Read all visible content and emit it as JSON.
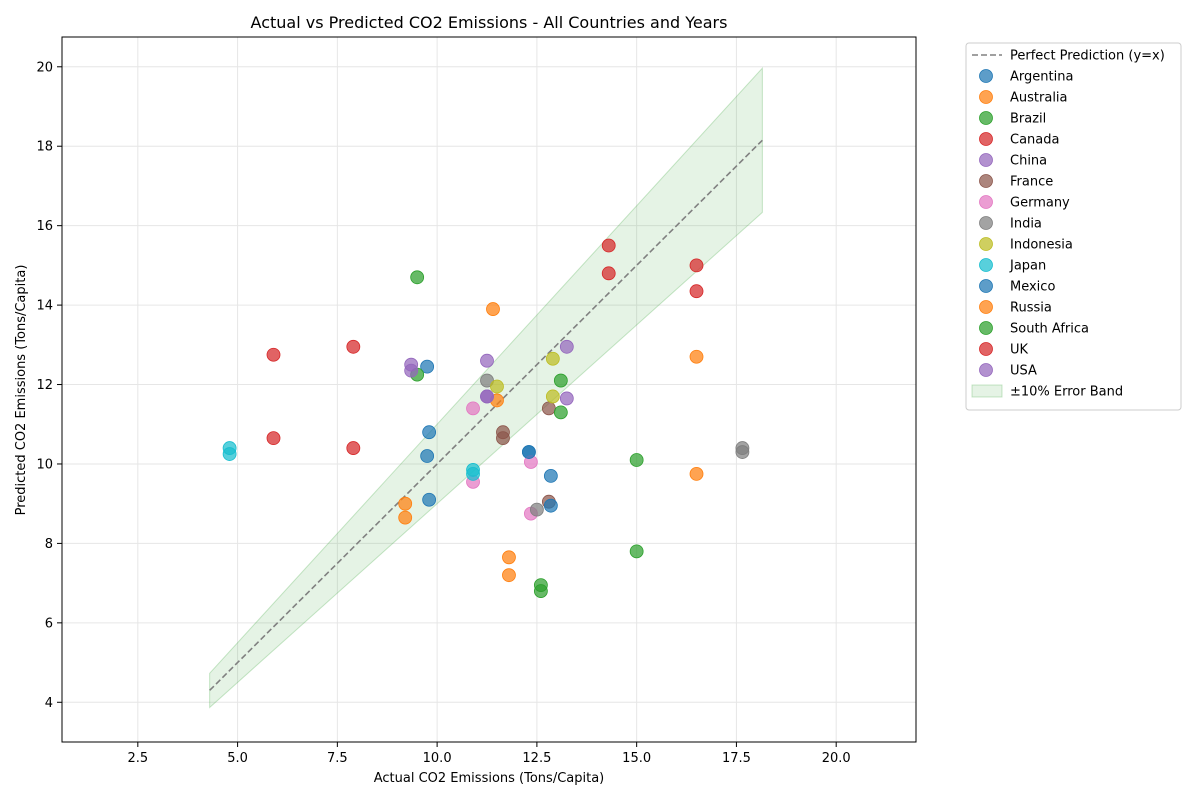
{
  "chart_data": {
    "type": "scatter",
    "title": "Actual vs Predicted CO2 Emissions - All Countries and Years",
    "xlabel": "Actual CO2 Emissions (Tons/Capita)",
    "ylabel": "Predicted CO2 Emissions (Tons/Capita)",
    "xlim": [
      0.6,
      22.0
    ],
    "ylim": [
      3.0,
      20.75
    ],
    "xticks": [
      "2.5",
      "5.0",
      "7.5",
      "10.0",
      "12.5",
      "15.0",
      "17.5",
      "20.0"
    ],
    "yticks": [
      "4",
      "6",
      "8",
      "10",
      "12",
      "14",
      "16",
      "18",
      "20"
    ],
    "grid": true,
    "legend_position": "outside-right",
    "reference_line": {
      "name": "Perfect Prediction (y=x)",
      "x": [
        4.3,
        18.15
      ],
      "y": [
        4.3,
        18.15
      ],
      "color": "#808080"
    },
    "error_band": {
      "name": "±10% Error Band",
      "x": [
        4.3,
        18.15
      ],
      "lower_factor": 0.9,
      "upper_factor": 1.1,
      "color": "#2ca02c"
    },
    "series": [
      {
        "name": "Argentina",
        "color": "#1f77b4",
        "points": [
          [
            9.75,
            12.45
          ],
          [
            9.8,
            10.8
          ],
          [
            12.85,
            9.7
          ],
          [
            12.3,
            10.3
          ]
        ]
      },
      {
        "name": "Australia",
        "color": "#ff7f0e",
        "points": [
          [
            11.4,
            13.9
          ],
          [
            16.5,
            12.7
          ],
          [
            9.2,
            9.0
          ],
          [
            11.5,
            11.6
          ]
        ]
      },
      {
        "name": "Brazil",
        "color": "#2ca02c",
        "points": [
          [
            9.5,
            14.7
          ],
          [
            9.5,
            12.25
          ],
          [
            13.1,
            12.1
          ],
          [
            15.0,
            10.1
          ],
          [
            12.6,
            6.95
          ]
        ]
      },
      {
        "name": "Canada",
        "color": "#d62728",
        "points": [
          [
            14.3,
            15.5
          ],
          [
            14.3,
            14.8
          ],
          [
            16.5,
            15.0
          ],
          [
            5.9,
            12.75
          ],
          [
            7.9,
            12.95
          ]
        ]
      },
      {
        "name": "China",
        "color": "#9467bd",
        "points": [
          [
            9.35,
            12.5
          ],
          [
            11.25,
            12.6
          ],
          [
            13.25,
            12.95
          ],
          [
            11.25,
            11.7
          ]
        ]
      },
      {
        "name": "France",
        "color": "#8c564b",
        "points": [
          [
            11.65,
            10.8
          ],
          [
            11.65,
            10.65
          ],
          [
            12.8,
            11.4
          ],
          [
            12.8,
            9.05
          ]
        ]
      },
      {
        "name": "Germany",
        "color": "#e377c2",
        "points": [
          [
            10.9,
            11.4
          ],
          [
            10.9,
            9.55
          ],
          [
            12.35,
            10.05
          ],
          [
            12.35,
            8.75
          ]
        ]
      },
      {
        "name": "India",
        "color": "#7f7f7f",
        "points": [
          [
            17.65,
            10.4
          ],
          [
            17.65,
            10.3
          ],
          [
            12.5,
            8.85
          ],
          [
            11.25,
            12.1
          ]
        ]
      },
      {
        "name": "Indonesia",
        "color": "#bcbd22",
        "points": [
          [
            12.9,
            12.65
          ],
          [
            12.9,
            11.7
          ],
          [
            11.5,
            11.95
          ]
        ]
      },
      {
        "name": "Japan",
        "color": "#17becf",
        "points": [
          [
            4.8,
            10.4
          ],
          [
            4.8,
            10.25
          ],
          [
            10.9,
            9.85
          ],
          [
            10.9,
            9.75
          ]
        ]
      },
      {
        "name": "Mexico",
        "color": "#1f77b4",
        "points": [
          [
            9.75,
            10.2
          ],
          [
            9.8,
            9.1
          ],
          [
            12.85,
            8.95
          ],
          [
            12.3,
            10.3
          ]
        ]
      },
      {
        "name": "Russia",
        "color": "#ff7f0e",
        "points": [
          [
            16.5,
            9.75
          ],
          [
            9.2,
            8.65
          ],
          [
            11.8,
            7.65
          ],
          [
            11.8,
            7.2
          ]
        ]
      },
      {
        "name": "South Africa",
        "color": "#2ca02c",
        "points": [
          [
            15.0,
            7.8
          ],
          [
            13.1,
            11.3
          ],
          [
            12.6,
            6.8
          ]
        ]
      },
      {
        "name": "UK",
        "color": "#d62728",
        "points": [
          [
            16.5,
            14.35
          ],
          [
            5.9,
            10.65
          ],
          [
            7.9,
            10.4
          ]
        ]
      },
      {
        "name": "USA",
        "color": "#9467bd",
        "points": [
          [
            9.35,
            12.35
          ],
          [
            13.25,
            11.65
          ],
          [
            11.25,
            11.7
          ]
        ]
      }
    ]
  }
}
